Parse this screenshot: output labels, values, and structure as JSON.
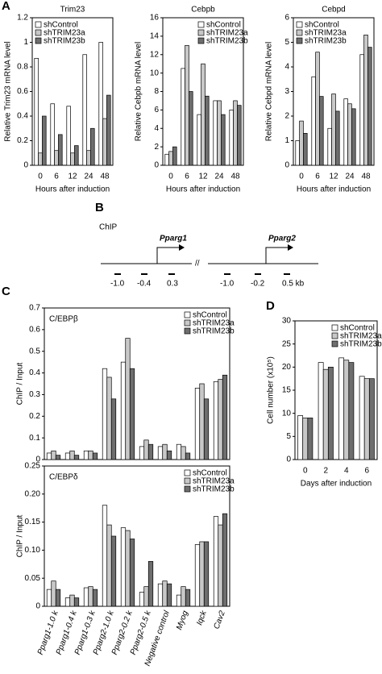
{
  "chart_data": [
    {
      "type": "bar",
      "panel": "A",
      "title": "Trim23",
      "ylabel": "Relative Trim23 mRNA level",
      "xlabel": "Hours after induction",
      "categories": [
        "0",
        "6",
        "12",
        "24",
        "48"
      ],
      "ylim": [
        0,
        1.2
      ],
      "yticks": [
        0,
        0.2,
        0.4,
        0.6,
        0.8,
        1,
        1.2
      ],
      "legend": "upper left",
      "series": [
        {
          "name": "shControl",
          "color": "#ffffff",
          "values": [
            0.87,
            0.5,
            0.48,
            0.9,
            1.0
          ]
        },
        {
          "name": "shTRIM23a",
          "color": "#c8c8c8",
          "values": [
            0.1,
            0.12,
            0.1,
            0.12,
            0.38
          ]
        },
        {
          "name": "shTRIM23b",
          "color": "#6e6e6e",
          "values": [
            0.4,
            0.25,
            0.16,
            0.3,
            0.57
          ]
        }
      ]
    },
    {
      "type": "bar",
      "title": "Cebpb",
      "ylabel": "Relative Cebpb mRNA level",
      "xlabel": "Hours after induction",
      "categories": [
        "0",
        "6",
        "12",
        "24",
        "48"
      ],
      "ylim": [
        0,
        16
      ],
      "yticks": [
        0,
        2,
        4,
        6,
        8,
        10,
        12,
        14,
        16
      ],
      "legend": "upper right",
      "series": [
        {
          "name": "shControl",
          "color": "#ffffff",
          "values": [
            1.2,
            10.5,
            5.5,
            7,
            6
          ]
        },
        {
          "name": "shTRIM23a",
          "color": "#c8c8c8",
          "values": [
            1.5,
            13,
            11,
            7,
            7
          ]
        },
        {
          "name": "shTRIM23b",
          "color": "#6e6e6e",
          "values": [
            2,
            8,
            7.5,
            5.5,
            6.5
          ]
        }
      ]
    },
    {
      "type": "bar",
      "title": "Cebpd",
      "ylabel": "Relative Cebpd mRNA level",
      "xlabel": "Hours after induction",
      "categories": [
        "0",
        "6",
        "12",
        "24",
        "48"
      ],
      "ylim": [
        0,
        6
      ],
      "yticks": [
        0,
        1,
        2,
        3,
        4,
        5,
        6
      ],
      "legend": "upper left",
      "series": [
        {
          "name": "shControl",
          "color": "#ffffff",
          "values": [
            1,
            3.6,
            1.5,
            2.7,
            4.5
          ]
        },
        {
          "name": "shTRIM23a",
          "color": "#c8c8c8",
          "values": [
            1.8,
            4.6,
            2.9,
            2.5,
            5.3
          ]
        },
        {
          "name": "shTRIM23b",
          "color": "#6e6e6e",
          "values": [
            1.3,
            2.8,
            2.2,
            2.3,
            4.8
          ]
        }
      ]
    },
    {
      "type": "bar",
      "panel": "C",
      "title": "C/EBPβ",
      "ylabel": "ChIP / Input",
      "ylim": [
        0,
        0.7
      ],
      "yticks": [
        0,
        0.1,
        0.2,
        0.3,
        0.4,
        0.5,
        0.6,
        0.7
      ],
      "legend": "upper right",
      "series": [
        {
          "name": "shControl",
          "color": "#ffffff",
          "values": [
            0.03,
            0.03,
            0.04,
            0.42,
            0.45,
            0.06,
            0.06,
            0.07,
            0.33,
            0.36
          ]
        },
        {
          "name": "shTRIM23a",
          "color": "#c8c8c8",
          "values": [
            0.04,
            0.04,
            0.04,
            0.38,
            0.56,
            0.09,
            0.07,
            0.06,
            0.35,
            0.37
          ]
        },
        {
          "name": "shTRIM23b",
          "color": "#6e6e6e",
          "values": [
            0.02,
            0.02,
            0.03,
            0.28,
            0.42,
            0.07,
            0.04,
            0.03,
            0.28,
            0.39
          ]
        }
      ]
    },
    {
      "type": "bar",
      "title": "C/EBPδ",
      "ylabel": "ChIP / Input",
      "categories": [
        "Pparg1-1.0 k",
        "Pparg1-0.4 k",
        "Pparg1-0.3 k",
        "Pparg2-1.0 k",
        "Pparg2-0.2 k",
        "Pparg2-0.5 k",
        "Negative control",
        "Myog",
        "Iqck",
        "Cav2"
      ],
      "ylim": [
        0,
        0.25
      ],
      "yticks": [
        0,
        0.05,
        {
          "value": 0.1,
          "label": "0.10"
        },
        0.15,
        {
          "value": 0.2,
          "label": "0.20"
        },
        0.25
      ],
      "legend": "upper right",
      "series": [
        {
          "name": "shControl",
          "color": "#ffffff",
          "values": [
            0.03,
            0.015,
            0.033,
            0.18,
            0.14,
            0.025,
            0.04,
            0.02,
            0.11,
            0.16
          ]
        },
        {
          "name": "shTRIM23a",
          "color": "#c8c8c8",
          "values": [
            0.045,
            0.02,
            0.035,
            0.145,
            0.135,
            0.035,
            0.045,
            0.035,
            0.115,
            0.145
          ]
        },
        {
          "name": "shTRIM23b",
          "color": "#6e6e6e",
          "values": [
            0.03,
            0.015,
            0.03,
            0.125,
            0.12,
            0.08,
            0.04,
            0.03,
            0.115,
            0.165
          ]
        }
      ]
    },
    {
      "type": "bar",
      "panel": "D",
      "ylabel": "Cell number (x10⁵)",
      "xlabel": "Days after induction",
      "categories": [
        "0",
        "2",
        "4",
        "6"
      ],
      "ylim": [
        0,
        30
      ],
      "yticks": [
        0,
        5,
        10,
        15,
        20,
        25,
        30
      ],
      "legend": "upper right",
      "series": [
        {
          "name": "shControl",
          "color": "#ffffff",
          "values": [
            9.5,
            21,
            22,
            18
          ]
        },
        {
          "name": "shTRIM23a",
          "color": "#c8c8c8",
          "values": [
            9,
            19.5,
            21.5,
            17.5
          ]
        },
        {
          "name": "shTRIM23b",
          "color": "#6e6e6e",
          "values": [
            9,
            20,
            21,
            17.5
          ]
        }
      ]
    }
  ],
  "diagram": {
    "panel": "B",
    "label": "ChIP",
    "gene1": "Pparg1",
    "gene2": "Pparg2",
    "positions": [
      "-1.0",
      "-0.4",
      "0.3",
      "-1.0",
      "-0.2",
      "0.5 kb"
    ]
  }
}
